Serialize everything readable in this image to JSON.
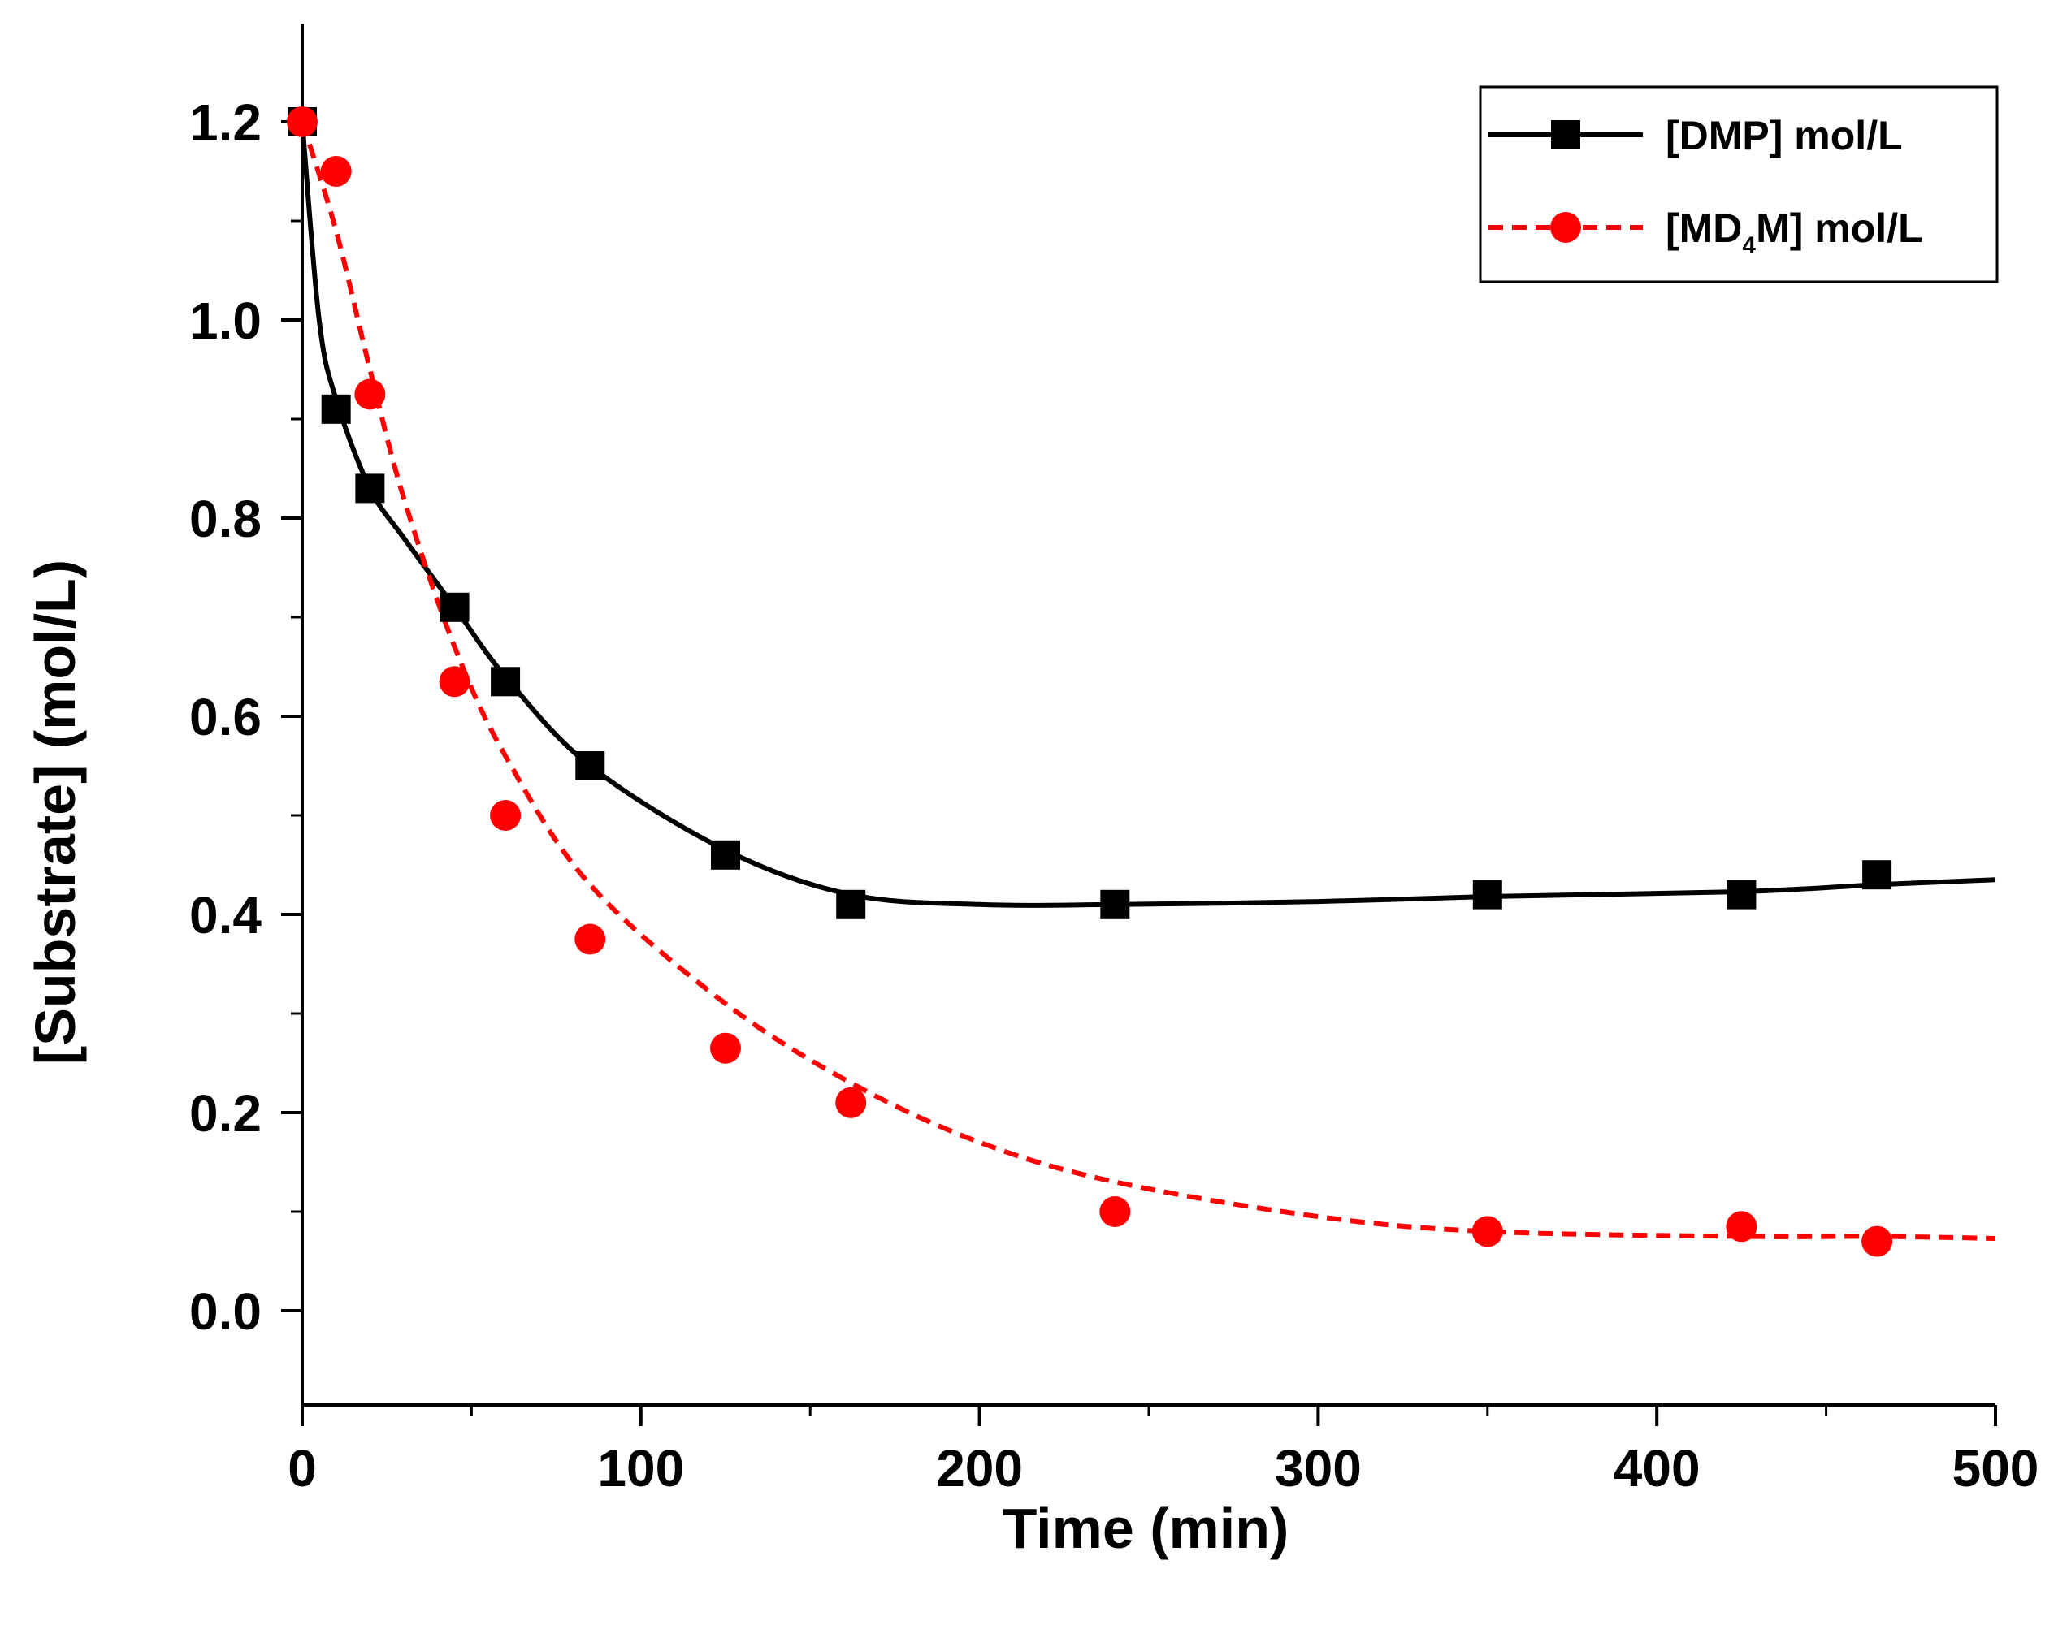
{
  "chart_data": {
    "type": "scatter",
    "title": "",
    "xlabel": "Time (min)",
    "ylabel": "[Substrate] (mol/L)",
    "xlim": [
      0,
      500
    ],
    "ylim": [
      -0.1,
      1.3
    ],
    "x_ticks": [
      0,
      100,
      200,
      300,
      400,
      500
    ],
    "x_tick_labels": [
      "0",
      "100",
      "200",
      "300",
      "400",
      "500"
    ],
    "y_ticks": [
      0.0,
      0.2,
      0.4,
      0.6,
      0.8,
      1.0,
      1.2
    ],
    "y_tick_labels": [
      "0.0",
      "0.2",
      "0.4",
      "0.6",
      "0.8",
      "1.0",
      "1.2"
    ],
    "grid": false,
    "legend_position": "top-right",
    "legend_labels": {
      "dmp": "[DMP] mol/L",
      "md4m_prefix": "[MD",
      "md4m_subscript": "4",
      "md4m_suffix": "M] mol/L"
    },
    "series": [
      {
        "name": "[DMP] mol/L",
        "color": "#000000",
        "marker": "square",
        "line_style": "solid",
        "x": [
          0,
          10,
          20,
          45,
          60,
          85,
          125,
          162,
          240,
          350,
          425,
          465
        ],
        "y": [
          1.2,
          0.91,
          0.83,
          0.71,
          0.635,
          0.55,
          0.46,
          0.41,
          0.41,
          0.42,
          0.42,
          0.44
        ],
        "fit_x": [
          0,
          5,
          10,
          20,
          30,
          45,
          60,
          85,
          125,
          162,
          200,
          240,
          300,
          350,
          425,
          465,
          500
        ],
        "fit_y": [
          1.2,
          1.0,
          0.92,
          0.83,
          0.78,
          0.71,
          0.64,
          0.55,
          0.465,
          0.42,
          0.41,
          0.41,
          0.413,
          0.418,
          0.423,
          0.43,
          0.435
        ]
      },
      {
        "name": "[MD4M] mol/L",
        "color": "#ff0000",
        "marker": "circle",
        "line_style": "dashed",
        "x": [
          0,
          10,
          20,
          45,
          60,
          85,
          125,
          162,
          240,
          350,
          425,
          465
        ],
        "y": [
          1.2,
          1.15,
          0.925,
          0.635,
          0.5,
          0.375,
          0.265,
          0.21,
          0.1,
          0.08,
          0.085,
          0.07
        ],
        "fit_x": [
          0,
          10,
          20,
          30,
          45,
          60,
          85,
          125,
          162,
          200,
          240,
          300,
          350,
          425,
          465,
          500
        ],
        "fit_y": [
          1.2,
          1.09,
          0.95,
          0.82,
          0.67,
          0.56,
          0.43,
          0.31,
          0.23,
          0.17,
          0.13,
          0.095,
          0.08,
          0.075,
          0.075,
          0.073
        ]
      }
    ]
  }
}
